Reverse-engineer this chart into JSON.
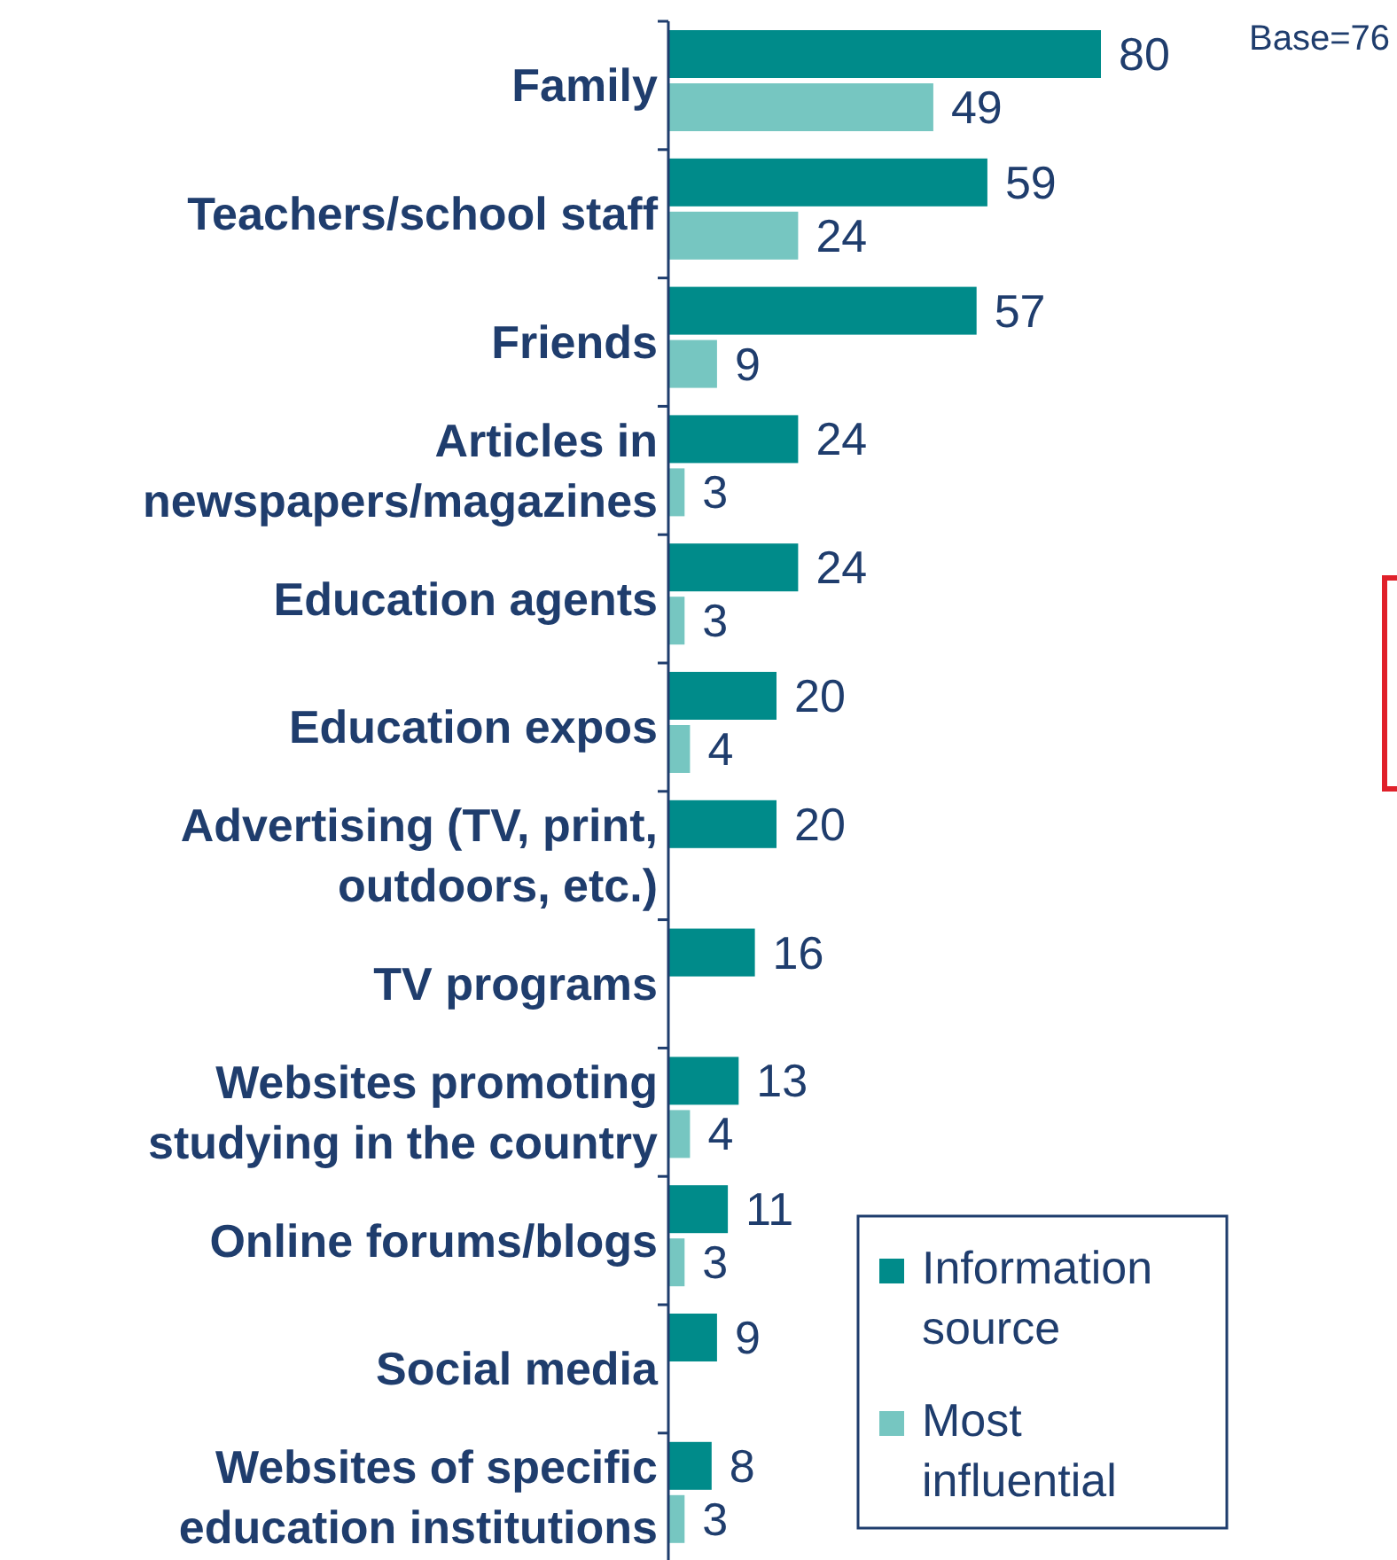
{
  "chart_data": {
    "type": "bar",
    "orientation": "horizontal",
    "data_labels": true,
    "legend": "bottom right",
    "categories": [
      "Family",
      "Teachers/school staff",
      "Friends",
      "Articles in newspapers/magazines",
      "Education agents",
      "Education expos",
      "Advertising (TV, print, outdoors, etc.)",
      "TV programs",
      "Websites promoting studying in the country",
      "Online forums/blogs",
      "Social media",
      "Websites of specific education institutions"
    ],
    "series": [
      {
        "name": "Information source",
        "color": "#008b8a",
        "values": [
          80,
          59,
          57,
          24,
          24,
          20,
          20,
          16,
          13,
          11,
          9,
          8
        ]
      },
      {
        "name": "Most influential",
        "color": "#76c6c1",
        "values": [
          49,
          24,
          9,
          3,
          3,
          4,
          null,
          null,
          4,
          3,
          null,
          3
        ]
      }
    ],
    "annotations": [
      "Base=76"
    ]
  }
}
